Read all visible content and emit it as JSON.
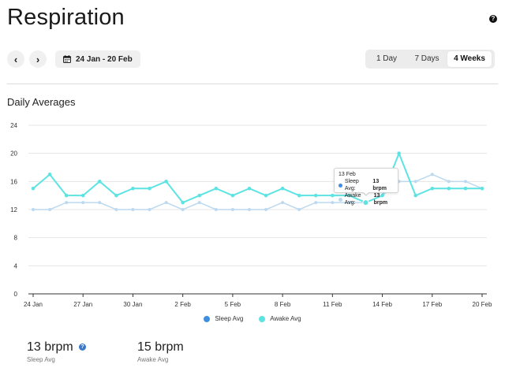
{
  "page": {
    "title": "Respiration",
    "help_icon": "question-circle-icon"
  },
  "toolbar": {
    "prev_icon": "chevron-left-icon",
    "next_icon": "chevron-right-icon",
    "prev_label": "‹",
    "next_label": "›",
    "date_icon": "calendar-icon",
    "date_range": "24 Jan - 20 Feb",
    "ranges": [
      {
        "label": "1 Day",
        "active": false
      },
      {
        "label": "7 Days",
        "active": false
      },
      {
        "label": "4 Weeks",
        "active": true
      }
    ]
  },
  "section": {
    "title": "Daily Averages"
  },
  "colors": {
    "sleep": "#bcd9f0",
    "awake": "#5ee3e3",
    "sleep_legend": "#3e8fe0",
    "awake_legend": "#5ee3e3",
    "grid": "#e4e4e4",
    "axis": "#333333"
  },
  "chart_data": {
    "type": "line",
    "x": [
      "24 Jan",
      "25 Jan",
      "26 Jan",
      "27 Jan",
      "28 Jan",
      "29 Jan",
      "30 Jan",
      "31 Jan",
      "1 Feb",
      "2 Feb",
      "3 Feb",
      "4 Feb",
      "5 Feb",
      "6 Feb",
      "7 Feb",
      "8 Feb",
      "9 Feb",
      "10 Feb",
      "11 Feb",
      "12 Feb",
      "13 Feb",
      "14 Feb",
      "15 Feb",
      "16 Feb",
      "17 Feb",
      "18 Feb",
      "19 Feb",
      "20 Feb"
    ],
    "x_tick_labels": [
      "24 Jan",
      "27 Jan",
      "30 Jan",
      "2 Feb",
      "5 Feb",
      "8 Feb",
      "11 Feb",
      "14 Feb",
      "17 Feb",
      "20 Feb"
    ],
    "y_ticks": [
      0,
      4,
      8,
      12,
      16,
      20,
      24
    ],
    "ylim": [
      0,
      24
    ],
    "grid": true,
    "legend_position": "bottom",
    "series": [
      {
        "name": "Sleep Avg",
        "values": [
          12,
          12,
          13,
          13,
          13,
          12,
          12,
          12,
          13,
          12,
          13,
          12,
          12,
          12,
          12,
          13,
          12,
          13,
          13,
          13,
          13,
          14,
          16,
          16,
          17,
          16,
          16,
          15
        ]
      },
      {
        "name": "Awake Avg",
        "values": [
          15,
          17,
          14,
          14,
          16,
          14,
          15,
          15,
          16,
          13,
          14,
          15,
          14,
          15,
          14,
          15,
          14,
          14,
          14,
          14,
          13,
          14,
          20,
          14,
          15,
          15,
          15,
          15
        ]
      }
    ],
    "tooltip": {
      "date": "13 Feb",
      "index": 20,
      "rows": [
        {
          "label": "Sleep Avg:",
          "value": "13 brpm"
        },
        {
          "label": "Awake Avg:",
          "value": "13 brpm"
        }
      ]
    }
  },
  "legend": {
    "sleep_label": "Sleep Avg",
    "awake_label": "Awake Avg"
  },
  "stats": {
    "sleep": {
      "value": "13 brpm",
      "label": "Sleep Avg"
    },
    "awake": {
      "value": "15 brpm",
      "label": "Awake Avg"
    }
  }
}
